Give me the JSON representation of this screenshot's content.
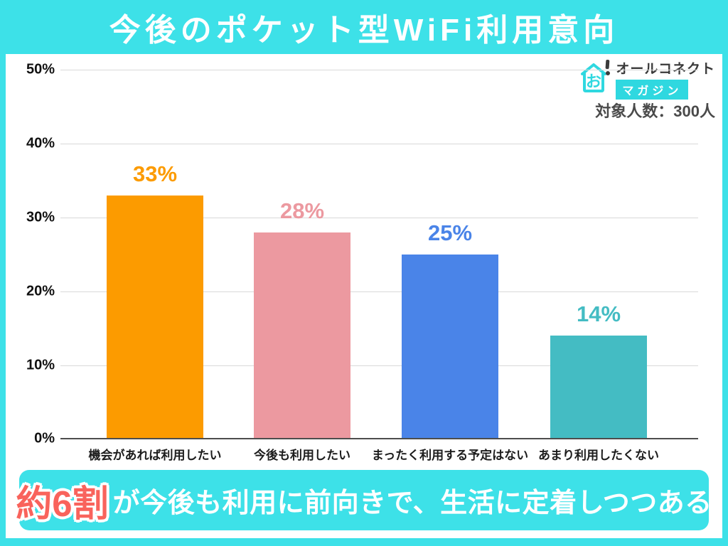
{
  "header": {
    "title": "今後のポケット型WiFi利用意向"
  },
  "branding": {
    "logo_icon": "house-exclamation-icon",
    "logo_text": "オールコネクト",
    "logo_sub": "マガジン",
    "sample_label": "対象人数：300人"
  },
  "chart_data": {
    "type": "bar",
    "title": "今後のポケット型WiFi利用意向",
    "categories": [
      "機会があれば利用したい",
      "今後も利用したい",
      "まったく利用する予定はない",
      "あまり利用したくない"
    ],
    "values": [
      33,
      28,
      25,
      14
    ],
    "value_labels": [
      "33%",
      "28%",
      "25%",
      "14%"
    ],
    "bar_colors": [
      "#FC9B00",
      "#EC99A0",
      "#4A84E8",
      "#44BCC3"
    ],
    "xlabel": "",
    "ylabel": "",
    "ylim": [
      0,
      50
    ],
    "yticks": [
      "50%",
      "40%",
      "30%",
      "20%",
      "10%",
      "0%"
    ],
    "grid": true,
    "legend": false,
    "sample_size": "300人"
  },
  "footer": {
    "highlight": "約6割",
    "text": "が今後も利用に前向きで、生活に定着しつつある"
  },
  "colors": {
    "background": "#3DE1E8",
    "card": "#FFFFFF",
    "logo_cyan": "#2FD8E0",
    "highlight_red": "#F9635C",
    "gridline": "#D9D9D9",
    "axis": "#4D4D4D"
  }
}
